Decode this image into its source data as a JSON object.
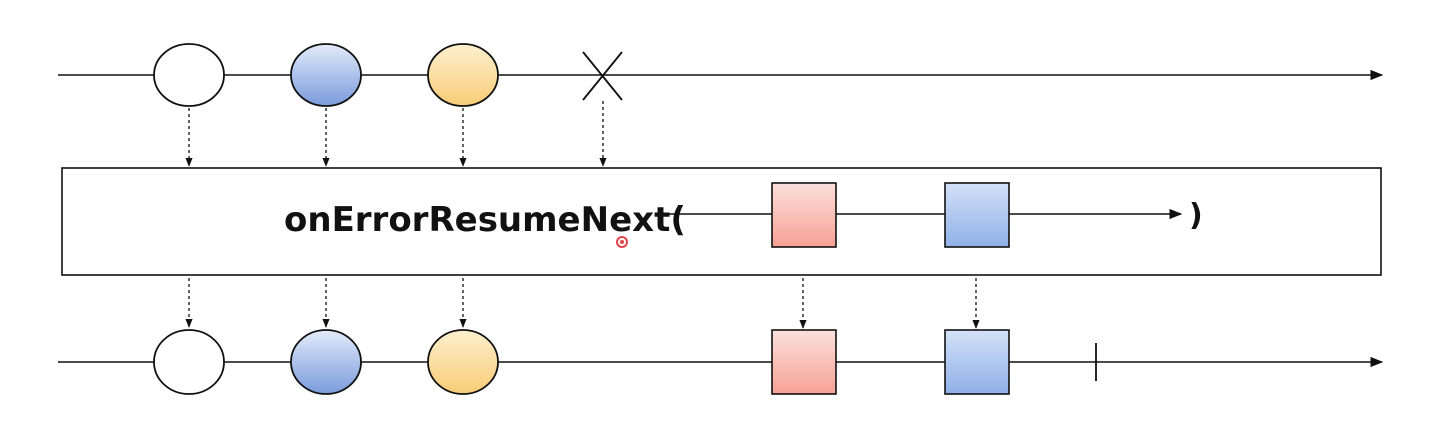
{
  "operator": {
    "name": "onErrorResumeNext(",
    "close_paren": ")"
  },
  "palette": {
    "white_fill": "#ffffff",
    "blue_fill_top": "#e2ebfa",
    "blue_fill_bottom": "#7a9bdc",
    "yellow_fill_top": "#fdf0cf",
    "yellow_fill_bottom": "#f8cc76",
    "red_fill_top": "#fbe0dc",
    "red_fill_bottom": "#f7a195",
    "blue_square_top": "#d3e1f7",
    "blue_square_bottom": "#8fb0e8",
    "cursor": "#e8454a"
  },
  "source_stream": {
    "items": [
      "white-circle",
      "blue-circle",
      "yellow-circle"
    ],
    "terminal": "error-x"
  },
  "fallback_stream": {
    "items": [
      "red-square",
      "blue-square"
    ]
  },
  "result_stream": {
    "items": [
      "white-circle",
      "blue-circle",
      "yellow-circle",
      "red-square",
      "blue-square"
    ],
    "terminal": "completion-bar"
  }
}
